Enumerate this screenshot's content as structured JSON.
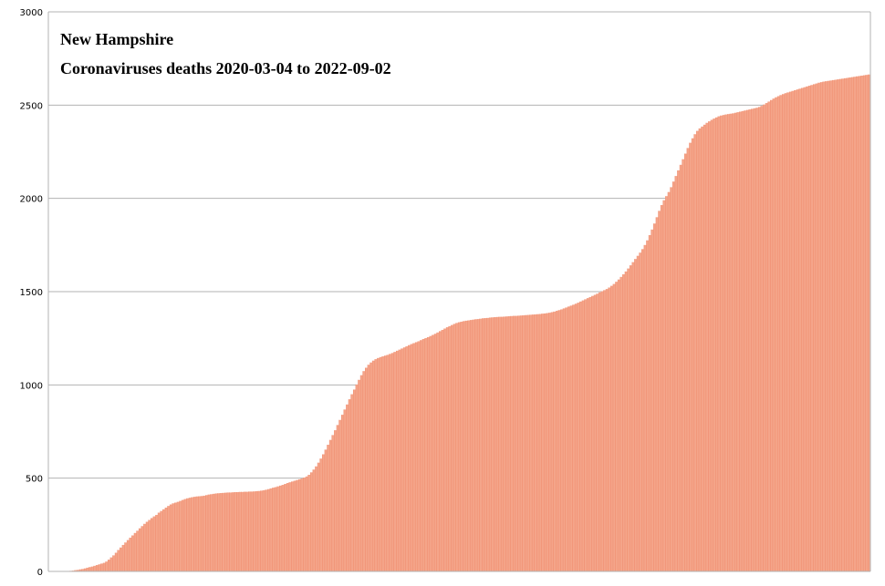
{
  "chart_data": {
    "type": "bar",
    "title": "New Hampshire",
    "subtitle": "Coronaviruses deaths 2020-03-04 to 2022-09-02",
    "xlabel": "",
    "ylabel": "",
    "ylim": [
      0,
      3000
    ],
    "yticks": [
      "0",
      "500",
      "1000",
      "1500",
      "2000",
      "2500",
      "3000"
    ],
    "grid": true,
    "legend": "none",
    "bar_color": "#f4a58a",
    "bar_edge_color": "#f08e70",
    "grid_color": "#b3b3b3",
    "x_start": "2020-03-04",
    "x_end": "2022-09-02",
    "x_interval_days": 2,
    "values": [
      0,
      0,
      0,
      0,
      0,
      0,
      0,
      0,
      1,
      3,
      4,
      7,
      8,
      11,
      13,
      16,
      20,
      23,
      26,
      30,
      34,
      38,
      42,
      46,
      53,
      63,
      75,
      86,
      100,
      115,
      128,
      142,
      155,
      168,
      181,
      193,
      206,
      218,
      231,
      243,
      255,
      266,
      276,
      286,
      295,
      303,
      315,
      324,
      333,
      342,
      351,
      359,
      365,
      369,
      373,
      378,
      383,
      388,
      392,
      395,
      398,
      400,
      402,
      403,
      404,
      406,
      409,
      412,
      414,
      416,
      418,
      419,
      420,
      421,
      422,
      423,
      423,
      424,
      425,
      425,
      426,
      426,
      427,
      427,
      428,
      428,
      429,
      430,
      431,
      433,
      435,
      438,
      441,
      445,
      449,
      452,
      456,
      460,
      464,
      469,
      474,
      478,
      482,
      486,
      490,
      494,
      498,
      503,
      509,
      518,
      531,
      546,
      563,
      583,
      605,
      628,
      653,
      679,
      705,
      731,
      757,
      785,
      812,
      840,
      868,
      895,
      923,
      950,
      975,
      1002,
      1027,
      1052,
      1074,
      1092,
      1108,
      1120,
      1130,
      1138,
      1144,
      1149,
      1153,
      1157,
      1161,
      1166,
      1171,
      1177,
      1183,
      1189,
      1195,
      1201,
      1207,
      1213,
      1219,
      1224,
      1229,
      1234,
      1240,
      1246,
      1251,
      1256,
      1262,
      1268,
      1274,
      1281,
      1288,
      1295,
      1302,
      1309,
      1315,
      1321,
      1327,
      1332,
      1336,
      1339,
      1342,
      1344,
      1346,
      1348,
      1350,
      1352,
      1353,
      1355,
      1357,
      1358,
      1359,
      1361,
      1362,
      1363,
      1364,
      1365,
      1365,
      1366,
      1367,
      1368,
      1369,
      1370,
      1370,
      1371,
      1372,
      1373,
      1374,
      1375,
      1376,
      1377,
      1378,
      1379,
      1380,
      1382,
      1383,
      1385,
      1387,
      1390,
      1393,
      1397,
      1401,
      1405,
      1410,
      1415,
      1420,
      1425,
      1430,
      1435,
      1441,
      1447,
      1453,
      1459,
      1465,
      1471,
      1477,
      1483,
      1489,
      1496,
      1502,
      1508,
      1514,
      1522,
      1531,
      1541,
      1553,
      1565,
      1579,
      1593,
      1608,
      1624,
      1641,
      1658,
      1675,
      1692,
      1709,
      1728,
      1750,
      1775,
      1803,
      1833,
      1865,
      1899,
      1933,
      1964,
      1990,
      2012,
      2034,
      2060,
      2090,
      2120,
      2150,
      2180,
      2210,
      2240,
      2270,
      2298,
      2322,
      2344,
      2362,
      2375,
      2385,
      2395,
      2405,
      2413,
      2421,
      2428,
      2434,
      2440,
      2444,
      2447,
      2450,
      2452,
      2454,
      2456,
      2459,
      2462,
      2465,
      2468,
      2471,
      2474,
      2477,
      2480,
      2483,
      2486,
      2490,
      2496,
      2503,
      2511,
      2519,
      2527,
      2535,
      2542,
      2548,
      2554,
      2559,
      2564,
      2568,
      2572,
      2576,
      2580,
      2584,
      2588,
      2592,
      2596,
      2600,
      2604,
      2608,
      2612,
      2616,
      2620,
      2623,
      2626,
      2628,
      2630,
      2632,
      2634,
      2636,
      2638,
      2640,
      2642,
      2644,
      2646,
      2648,
      2650,
      2652,
      2654,
      2656,
      2658,
      2660,
      2662,
      2664
    ]
  }
}
